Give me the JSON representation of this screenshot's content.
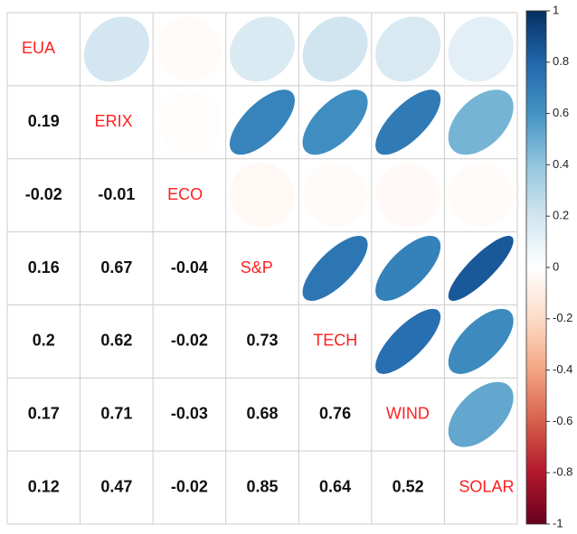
{
  "chart_data": {
    "type": "correlation",
    "variables": [
      "EUA",
      "ERIX",
      "ECO",
      "S&P",
      "TECH",
      "WIND",
      "SOLAR"
    ],
    "values": [
      [
        0.19
      ],
      [
        -0.02,
        -0.01
      ],
      [
        0.16,
        0.67,
        -0.04
      ],
      [
        0.2,
        0.62,
        -0.02,
        0.73
      ],
      [
        0.17,
        0.71,
        -0.03,
        0.68,
        0.76
      ],
      [
        0.12,
        0.47,
        -0.02,
        0.85,
        0.64,
        0.52
      ]
    ],
    "colormap": [
      "#67001F",
      "#B2182B",
      "#D6604D",
      "#F4A582",
      "#FDDBC7",
      "#FFFFFF",
      "#D1E5F0",
      "#92C5DE",
      "#4393C3",
      "#2166AC",
      "#053061"
    ],
    "zlim": [
      -1,
      1
    ],
    "zticks": [
      1,
      0.8,
      0.6,
      0.4,
      0.2,
      0,
      -0.2,
      -0.4,
      -0.6,
      -0.8,
      -1
    ],
    "label_color": "#ff2020"
  }
}
